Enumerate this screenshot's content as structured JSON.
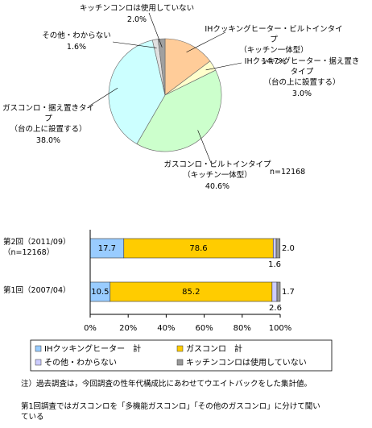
{
  "chart_data": [
    {
      "type": "pie",
      "categories": [
        "IHクッキングヒーター・ビルトインタイプ\n（キッチン一体型）",
        "IHクッキングヒーター・据え置きタイプ\n（台の上に設置する）",
        "ガスコンロ・ビルトインタイプ\n（キッチン一体型）",
        "ガスコンロ・据え置きタイプ\n（台の上に設置する）",
        "その他・わからない",
        "キッチンコンロは使用していない"
      ],
      "values": [
        14.7,
        3.0,
        40.6,
        38.0,
        1.6,
        2.0
      ],
      "value_labels": [
        "14.7%",
        "3.0%",
        "40.6%",
        "38.0%",
        "1.6%",
        "2.0%"
      ],
      "colors": [
        "#ffcc99",
        "#ffffcc",
        "#ccffcc",
        "#ccffff",
        "#e0e0e0",
        "#a0a0a0"
      ],
      "annotation": "n=12168"
    },
    {
      "type": "stacked-hbar",
      "categories": [
        "第2回（2011/09）\n（n=12168）",
        "第1回（2007/04）"
      ],
      "series": [
        {
          "name": "IHクッキングヒーター　計",
          "color": "#99ccff",
          "values": [
            17.7,
            10.5
          ]
        },
        {
          "name": "ガスコンロ　計",
          "color": "#ffcc00",
          "values": [
            78.6,
            85.2
          ]
        },
        {
          "name": "その他・わからない",
          "color": "#ccccff",
          "values": [
            1.6,
            2.6
          ]
        },
        {
          "name": "キッチンコンロは使用していない",
          "color": "#999999",
          "values": [
            2.0,
            1.7
          ],
          "value_labels": [
            "2.0",
            "1.7"
          ]
        }
      ],
      "xlim": [
        0,
        100
      ],
      "xticks": [
        {
          "value": 0,
          "label": "0%"
        },
        {
          "value": 20,
          "label": "20%"
        },
        {
          "value": 40,
          "label": "40%"
        },
        {
          "value": 60,
          "label": "60%"
        },
        {
          "value": 80,
          "label": "80%"
        },
        {
          "value": 100,
          "label": "100%"
        }
      ]
    }
  ],
  "notes": [
    "注）過去調査は，今回調査の性年代構成比にあわせてウエイトバックをした集計値。",
    "第1回調査ではガスコンロを「多機能ガスコンロ」「その他のガスコンロ」に分けて聞いている"
  ]
}
